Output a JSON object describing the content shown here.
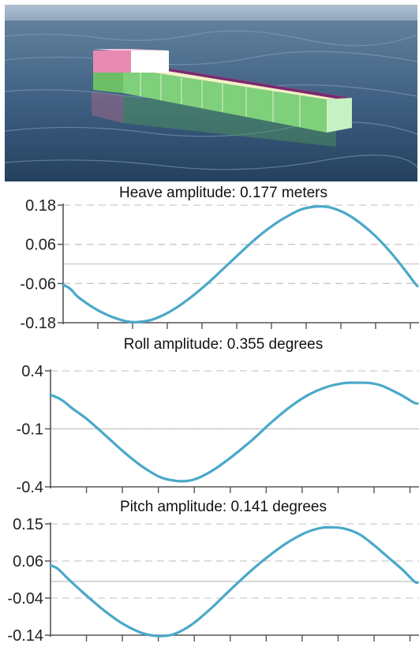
{
  "colors": {
    "curve": "#4aa8c9",
    "axis": "#555555",
    "grid_dashed": "#c9c9c9",
    "zero_line": "#c6c6c6",
    "water": "#3e5f82",
    "hull_green": "#7fd07a",
    "deck_cream": "#f3f1c6",
    "deck_purple": "#7a2a6e",
    "bridge_pink": "#e88ab2"
  },
  "chart_data": [
    {
      "type": "line",
      "title": "Heave amplitude: 0.177 meters",
      "unit": "meters",
      "yticks": [
        "0.18",
        "0.06",
        "-0.06",
        "-0.18"
      ],
      "ylim": [
        -0.18,
        0.18
      ],
      "zero_line": true,
      "grid": "dashed",
      "x": [
        0,
        0.02,
        0.04,
        0.07,
        0.1,
        0.14,
        0.18,
        0.21,
        0.25,
        0.3,
        0.35,
        0.4,
        0.45,
        0.5,
        0.55,
        0.6,
        0.64,
        0.67,
        0.7,
        0.73,
        0.76,
        0.8,
        0.84,
        0.88,
        0.92,
        0.96,
        0.99,
        1.0
      ],
      "values": [
        -0.064,
        -0.076,
        -0.099,
        -0.123,
        -0.143,
        -0.163,
        -0.176,
        -0.178,
        -0.171,
        -0.147,
        -0.111,
        -0.067,
        -0.017,
        0.034,
        0.083,
        0.124,
        0.15,
        0.166,
        0.174,
        0.176,
        0.171,
        0.153,
        0.124,
        0.087,
        0.041,
        -0.012,
        -0.055,
        -0.068
      ]
    },
    {
      "type": "line",
      "title": "Roll amplitude: 0.355 degrees",
      "unit": "degrees",
      "yticks": [
        "0.4",
        "-0.1",
        "-0.4"
      ],
      "ylim": [
        -0.4,
        0.4
      ],
      "zero_line": true,
      "grid": "dashed",
      "x": [
        0,
        0.03,
        0.06,
        0.1,
        0.15,
        0.2,
        0.25,
        0.3,
        0.34,
        0.37,
        0.4,
        0.44,
        0.49,
        0.55,
        0.6,
        0.65,
        0.7,
        0.75,
        0.8,
        0.84,
        0.87,
        0.9,
        0.93,
        0.96,
        0.99,
        1.0
      ],
      "values": [
        0.235,
        0.2,
        0.14,
        0.066,
        -0.046,
        -0.16,
        -0.26,
        -0.334,
        -0.358,
        -0.36,
        -0.342,
        -0.29,
        -0.2,
        -0.076,
        0.04,
        0.146,
        0.23,
        0.286,
        0.315,
        0.318,
        0.316,
        0.3,
        0.266,
        0.227,
        0.181,
        0.175
      ]
    },
    {
      "type": "line",
      "title": "Pitch amplitude: 0.141 degrees",
      "unit": "degrees",
      "yticks": [
        "0.15",
        "0.06",
        "-0.04",
        "-0.14"
      ],
      "ylim": [
        -0.14,
        0.15
      ],
      "zero_line": true,
      "grid": "dashed",
      "x": [
        0,
        0.02,
        0.05,
        0.09,
        0.14,
        0.19,
        0.24,
        0.28,
        0.32,
        0.35,
        0.39,
        0.44,
        0.49,
        0.55,
        0.6,
        0.65,
        0.7,
        0.74,
        0.77,
        0.8,
        0.84,
        0.88,
        0.92,
        0.96,
        0.99,
        1.0
      ],
      "values": [
        0.042,
        0.033,
        0.005,
        -0.03,
        -0.071,
        -0.106,
        -0.131,
        -0.141,
        -0.141,
        -0.132,
        -0.109,
        -0.068,
        -0.022,
        0.031,
        0.07,
        0.104,
        0.129,
        0.14,
        0.141,
        0.138,
        0.124,
        0.096,
        0.063,
        0.03,
        0.001,
        -0.003
      ]
    }
  ]
}
